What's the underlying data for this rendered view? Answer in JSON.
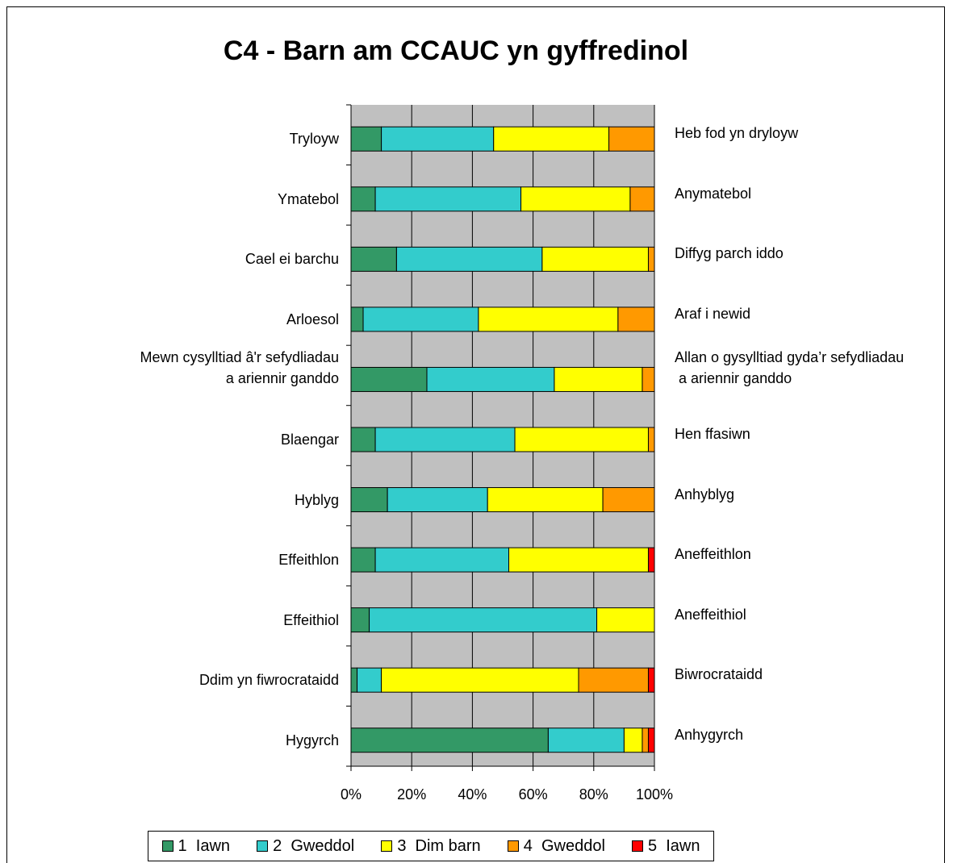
{
  "chart_data": {
    "type": "stacked_barh",
    "title": "C4 - Barn am CCAUC yn gyffredinol",
    "categories": [
      "Tryloyw",
      "Ymatebol",
      "Cael ei barchu",
      "Arloesol",
      "Mewn cysylltiad â'r sefydliadau\n a ariennir ganddo",
      "Blaengar",
      "Hyblyg",
      "Effeithlon",
      "Effeithiol",
      "Ddim yn fiwrocrataidd",
      "Hygyrch"
    ],
    "right_labels": [
      "Heb fod yn dryloyw",
      "Anymatebol",
      "Diffyg parch iddo",
      "Araf i newid",
      "Allan o gysylltiad gyda’r sefydliadau\n a ariennir ganddo",
      "Hen ffasiwn",
      "Anhyblyg",
      "Aneffeithlon",
      "Aneffeithiol",
      "Biwrocrataidd",
      "Anhygyrch"
    ],
    "series": [
      {
        "name": "1  Iawn",
        "color": "#339966",
        "values": [
          10,
          8,
          15,
          4,
          25,
          8,
          12,
          8,
          6,
          2,
          65
        ]
      },
      {
        "name": "2  Gweddol",
        "color": "#33cccc",
        "values": [
          37,
          48,
          48,
          38,
          42,
          46,
          33,
          44,
          75,
          8,
          25
        ]
      },
      {
        "name": "3  Dim barn",
        "color": "#ffff00",
        "values": [
          38,
          36,
          35,
          46,
          29,
          44,
          38,
          46,
          19,
          65,
          6
        ]
      },
      {
        "name": "4  Gweddol",
        "color": "#ff9900",
        "values": [
          15,
          8,
          2,
          12,
          4,
          2,
          17,
          0,
          0,
          23,
          2
        ]
      },
      {
        "name": "5  Iawn",
        "color": "#ff0000",
        "values": [
          0,
          0,
          0,
          0,
          0,
          0,
          0,
          2,
          0,
          2,
          2
        ]
      }
    ],
    "xlim": [
      0,
      100
    ],
    "xticks": [
      {
        "value": 0,
        "label": "0%"
      },
      {
        "value": 20,
        "label": "20%"
      },
      {
        "value": 40,
        "label": "40%"
      },
      {
        "value": 60,
        "label": "60%"
      },
      {
        "value": 80,
        "label": "80%"
      },
      {
        "value": 100,
        "label": "100%"
      }
    ],
    "grid": true,
    "legend": "bottom"
  }
}
